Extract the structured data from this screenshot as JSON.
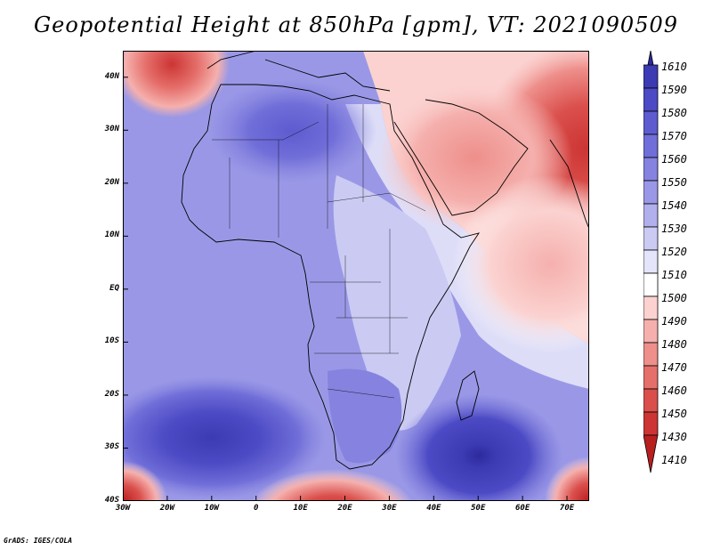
{
  "title": "Geopotential Height at 850hPa [gpm], VT: 2021090509",
  "footer": "GrADS: IGES/COLA",
  "map": {
    "lon_range": [
      -30,
      75
    ],
    "lat_range": [
      -40,
      45
    ],
    "lat_ticks": [
      {
        "value": 40,
        "label": "40N"
      },
      {
        "value": 30,
        "label": "30N"
      },
      {
        "value": 20,
        "label": "20N"
      },
      {
        "value": 10,
        "label": "10N"
      },
      {
        "value": 0,
        "label": "EQ"
      },
      {
        "value": -10,
        "label": "10S"
      },
      {
        "value": -20,
        "label": "20S"
      },
      {
        "value": -30,
        "label": "30S"
      },
      {
        "value": -40,
        "label": "40S"
      }
    ],
    "lon_ticks": [
      {
        "value": -30,
        "label": "30W"
      },
      {
        "value": -20,
        "label": "20W"
      },
      {
        "value": -10,
        "label": "10W"
      },
      {
        "value": 0,
        "label": "0"
      },
      {
        "value": 10,
        "label": "10E"
      },
      {
        "value": 20,
        "label": "20E"
      },
      {
        "value": 30,
        "label": "30E"
      },
      {
        "value": 40,
        "label": "40E"
      },
      {
        "value": 50,
        "label": "50E"
      },
      {
        "value": 60,
        "label": "60E"
      },
      {
        "value": 70,
        "label": "70E"
      }
    ]
  },
  "colorbar": {
    "labels": [
      "1610",
      "1590",
      "1580",
      "1570",
      "1560",
      "1550",
      "1540",
      "1530",
      "1520",
      "1510",
      "1500",
      "1490",
      "1480",
      "1470",
      "1460",
      "1450",
      "1430",
      "1410"
    ],
    "colors": [
      "#2c2a9c",
      "#3d3bb3",
      "#4c4ac4",
      "#5e5bd0",
      "#706ed8",
      "#8583df",
      "#9a98e6",
      "#b1b0ec",
      "#cbcaf3",
      "#e4e4fa",
      "#ffffff",
      "#fbd2d0",
      "#f5b0ad",
      "#ee8f8b",
      "#e56f6b",
      "#da4f4c",
      "#cc3533",
      "#b81f1f"
    ]
  },
  "field": {
    "features": [
      {
        "name": "north-atlantic-low",
        "lon": -19,
        "lat": 43,
        "rx": 8,
        "ry": 6,
        "value": 1435
      },
      {
        "name": "middle-east-heat-low",
        "lon": 62,
        "lat": 28,
        "rx": 18,
        "ry": 14,
        "value": 1450
      },
      {
        "name": "arabia-low",
        "lon": 45,
        "lat": 26,
        "rx": 14,
        "ry": 10,
        "value": 1475
      },
      {
        "name": "somali-jet-low",
        "lon": 65,
        "lat": 12,
        "rx": 14,
        "ry": 10,
        "value": 1480
      },
      {
        "name": "sahara-high",
        "lon": 3,
        "lat": 30,
        "rx": 12,
        "ry": 8,
        "value": 1560
      },
      {
        "name": "south-atlantic-high",
        "lon": -9,
        "lat": -29,
        "rx": 16,
        "ry": 7,
        "value": 1585
      },
      {
        "name": "indian-ocean-high",
        "lon": 50,
        "lat": -31,
        "rx": 11,
        "ry": 7,
        "value": 1595
      },
      {
        "name": "southern-ocean-low-west",
        "lon": -30,
        "lat": -40,
        "rx": 7,
        "ry": 4,
        "value": 1445
      },
      {
        "name": "southern-ocean-low-central",
        "lon": 18,
        "lat": -42,
        "rx": 11,
        "ry": 4,
        "value": 1440
      },
      {
        "name": "southern-ocean-low-east",
        "lon": 75,
        "lat": -40,
        "rx": 7,
        "ry": 4,
        "value": 1460
      }
    ]
  }
}
